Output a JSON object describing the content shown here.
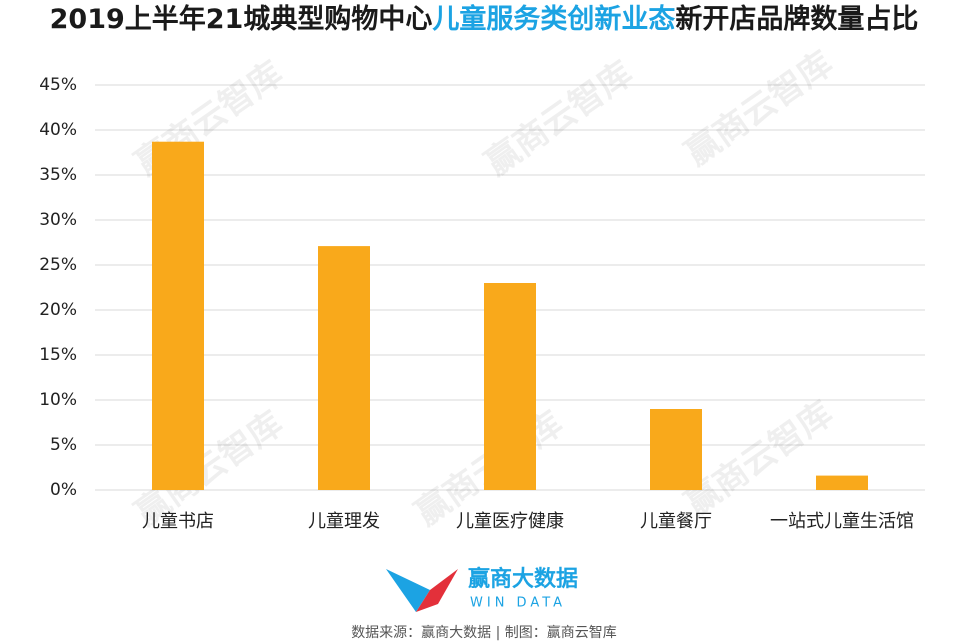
{
  "chart_data": {
    "type": "bar",
    "title": [
      "2019上半年21城典型购物中心",
      "儿童服务类创新业态",
      "新开店品牌数量占比"
    ],
    "title_color": "#1a1a1a",
    "title_highlight_color": "#1ca3e3",
    "categories": [
      "儿童书店",
      "儿童理发",
      "儿童医疗健康",
      "儿童餐厅",
      "一站式儿童生活馆"
    ],
    "values": [
      38.7,
      27.1,
      23.0,
      9.0,
      1.6
    ],
    "color": "#f9a91b",
    "ylim": [
      0,
      45
    ],
    "yticks": [
      {
        "value": 0,
        "label": "0%"
      },
      {
        "value": 5,
        "label": "5%"
      },
      {
        "value": 10,
        "label": "10%"
      },
      {
        "value": 15,
        "label": "15%"
      },
      {
        "value": 20,
        "label": "20%"
      },
      {
        "value": 25,
        "label": "25%"
      },
      {
        "value": 30,
        "label": "30%"
      },
      {
        "value": 35,
        "label": "35%"
      },
      {
        "value": 40,
        "label": "40%"
      },
      {
        "value": 45,
        "label": "45%"
      }
    ],
    "grid": true,
    "watermark": "赢商云智库",
    "logo_text": "赢商大数据",
    "logo_subtext": "WIN DATA",
    "source": "数据来源：赢商大数据 | 制图：赢商云智库"
  }
}
